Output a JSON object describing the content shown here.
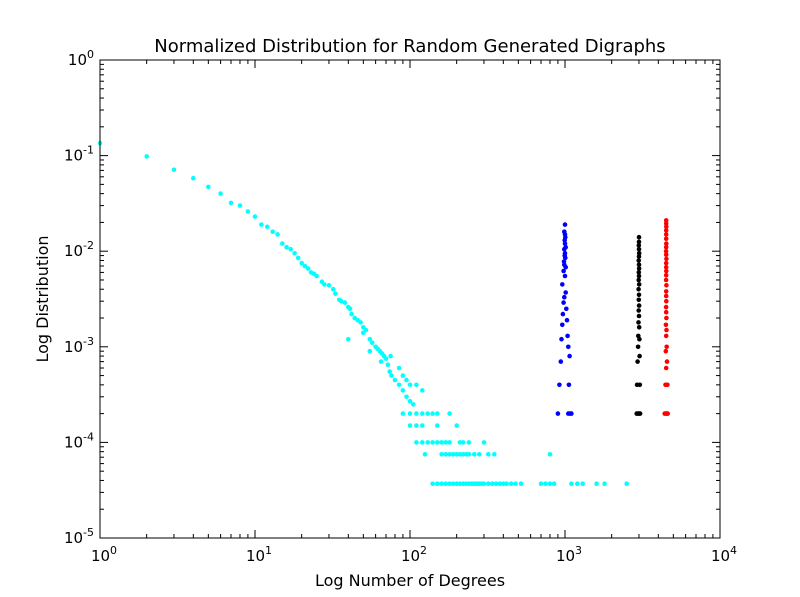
{
  "chart_data": {
    "type": "scatter",
    "title": "Normalized Distribution for Random Generated Digraphs",
    "xlabel": "Log Number of Degrees",
    "ylabel": "Log Distribution",
    "xscale": "log",
    "yscale": "log",
    "xlim": [
      1,
      10000
    ],
    "ylim": [
      1e-05,
      1
    ],
    "grid": false,
    "x_ticks": [
      {
        "base": "10",
        "exp": "0",
        "value": 1
      },
      {
        "base": "10",
        "exp": "1",
        "value": 10
      },
      {
        "base": "10",
        "exp": "2",
        "value": 100
      },
      {
        "base": "10",
        "exp": "3",
        "value": 1000
      },
      {
        "base": "10",
        "exp": "4",
        "value": 10000
      }
    ],
    "y_ticks": [
      {
        "base": "10",
        "exp": "0",
        "value": 1
      },
      {
        "base": "10",
        "exp": "-1",
        "value": 0.1
      },
      {
        "base": "10",
        "exp": "-2",
        "value": 0.01
      },
      {
        "base": "10",
        "exp": "-3",
        "value": 0.001
      },
      {
        "base": "10",
        "exp": "-4",
        "value": 0.0001
      },
      {
        "base": "10",
        "exp": "-5",
        "value": 1e-05
      }
    ],
    "series": [
      {
        "color": "#00ffff",
        "points": [
          [
            1,
            0.135
          ],
          [
            2,
            0.098
          ],
          [
            3,
            0.071
          ],
          [
            4,
            0.058
          ],
          [
            5,
            0.047
          ],
          [
            6,
            0.04
          ],
          [
            7,
            0.032
          ],
          [
            8,
            0.03
          ],
          [
            9,
            0.026
          ],
          [
            10,
            0.023
          ],
          [
            11,
            0.019
          ],
          [
            12,
            0.018
          ],
          [
            13,
            0.016
          ],
          [
            14,
            0.015
          ],
          [
            15,
            0.012
          ],
          [
            16,
            0.011
          ],
          [
            17,
            0.0105
          ],
          [
            18,
            0.0095
          ],
          [
            19,
            0.0085
          ],
          [
            20,
            0.0075
          ],
          [
            21,
            0.007
          ],
          [
            22,
            0.0066
          ],
          [
            23,
            0.006
          ],
          [
            24,
            0.0058
          ],
          [
            25,
            0.0055
          ],
          [
            27,
            0.0048
          ],
          [
            28,
            0.0045
          ],
          [
            30,
            0.0044
          ],
          [
            32,
            0.004
          ],
          [
            33,
            0.0036
          ],
          [
            35,
            0.0031
          ],
          [
            36,
            0.003
          ],
          [
            38,
            0.0029
          ],
          [
            40,
            0.0026
          ],
          [
            41,
            0.0025
          ],
          [
            42,
            0.0022
          ],
          [
            44,
            0.002
          ],
          [
            46,
            0.0019
          ],
          [
            48,
            0.0018
          ],
          [
            50,
            0.0016
          ],
          [
            52,
            0.0015
          ],
          [
            55,
            0.0012
          ],
          [
            57,
            0.0011
          ],
          [
            60,
            0.001
          ],
          [
            62,
            0.00095
          ],
          [
            64,
            0.0009
          ],
          [
            66,
            0.00085
          ],
          [
            68,
            0.0008
          ],
          [
            70,
            0.00075
          ],
          [
            72,
            0.00065
          ],
          [
            74,
            0.00055
          ],
          [
            76,
            0.0005
          ],
          [
            80,
            0.00045
          ],
          [
            85,
            0.0004
          ],
          [
            90,
            0.00035
          ],
          [
            95,
            0.0003
          ],
          [
            100,
            0.00027
          ],
          [
            105,
            0.00025
          ],
          [
            40,
            0.0012
          ],
          [
            50,
            0.0014
          ],
          [
            55,
            0.0009
          ],
          [
            65,
            0.0007
          ],
          [
            75,
            0.0008
          ],
          [
            85,
            0.0006
          ],
          [
            90,
            0.0005
          ],
          [
            95,
            0.00045
          ],
          [
            100,
            0.0004
          ],
          [
            110,
            0.0004
          ],
          [
            120,
            0.00035
          ],
          [
            100,
            0.0002
          ],
          [
            110,
            0.0002
          ],
          [
            120,
            0.0002
          ],
          [
            130,
            0.0002
          ],
          [
            140,
            0.0002
          ],
          [
            150,
            0.0002
          ],
          [
            180,
            0.0002
          ],
          [
            90,
            0.0002
          ],
          [
            100,
            0.00015
          ],
          [
            110,
            0.00015
          ],
          [
            120,
            0.00015
          ],
          [
            150,
            0.00015
          ],
          [
            200,
            0.00015
          ],
          [
            110,
            0.0001
          ],
          [
            120,
            0.0001
          ],
          [
            130,
            0.0001
          ],
          [
            140,
            0.0001
          ],
          [
            150,
            0.0001
          ],
          [
            160,
            0.0001
          ],
          [
            170,
            0.0001
          ],
          [
            180,
            0.0001
          ],
          [
            210,
            0.0001
          ],
          [
            220,
            0.0001
          ],
          [
            240,
            0.0001
          ],
          [
            300,
            0.0001
          ],
          [
            125,
            7.5e-05
          ],
          [
            160,
            7.5e-05
          ],
          [
            170,
            7.5e-05
          ],
          [
            180,
            7.5e-05
          ],
          [
            190,
            7.5e-05
          ],
          [
            200,
            7.5e-05
          ],
          [
            210,
            7.5e-05
          ],
          [
            220,
            7.5e-05
          ],
          [
            230,
            7.5e-05
          ],
          [
            240,
            7.5e-05
          ],
          [
            260,
            7.5e-05
          ],
          [
            280,
            7.5e-05
          ],
          [
            320,
            7.5e-05
          ],
          [
            350,
            7.5e-05
          ],
          [
            800,
            7.5e-05
          ],
          [
            140,
            3.7e-05
          ],
          [
            150,
            3.7e-05
          ],
          [
            160,
            3.7e-05
          ],
          [
            170,
            3.7e-05
          ],
          [
            180,
            3.7e-05
          ],
          [
            190,
            3.7e-05
          ],
          [
            200,
            3.7e-05
          ],
          [
            210,
            3.7e-05
          ],
          [
            220,
            3.7e-05
          ],
          [
            230,
            3.7e-05
          ],
          [
            240,
            3.7e-05
          ],
          [
            250,
            3.7e-05
          ],
          [
            260,
            3.7e-05
          ],
          [
            270,
            3.7e-05
          ],
          [
            280,
            3.7e-05
          ],
          [
            290,
            3.7e-05
          ],
          [
            300,
            3.7e-05
          ],
          [
            320,
            3.7e-05
          ],
          [
            340,
            3.7e-05
          ],
          [
            360,
            3.7e-05
          ],
          [
            380,
            3.7e-05
          ],
          [
            400,
            3.7e-05
          ],
          [
            420,
            3.7e-05
          ],
          [
            450,
            3.7e-05
          ],
          [
            480,
            3.7e-05
          ],
          [
            520,
            3.7e-05
          ],
          [
            700,
            3.7e-05
          ],
          [
            750,
            3.7e-05
          ],
          [
            800,
            3.7e-05
          ],
          [
            850,
            3.7e-05
          ],
          [
            1100,
            3.7e-05
          ],
          [
            1200,
            3.7e-05
          ],
          [
            1300,
            3.7e-05
          ],
          [
            1600,
            3.7e-05
          ],
          [
            1800,
            3.7e-05
          ],
          [
            2500,
            3.7e-05
          ]
        ]
      },
      {
        "color": "#0000ff",
        "points": [
          [
            900,
            0.0002
          ],
          [
            1080,
            0.0002
          ],
          [
            1100,
            0.0002
          ],
          [
            1050,
            0.0002
          ],
          [
            920,
            0.0004
          ],
          [
            1060,
            0.0004
          ],
          [
            940,
            0.0007
          ],
          [
            1070,
            0.0008
          ],
          [
            1050,
            0.001
          ],
          [
            950,
            0.0012
          ],
          [
            1040,
            0.0013
          ],
          [
            960,
            0.0017
          ],
          [
            1030,
            0.0019
          ],
          [
            970,
            0.0022
          ],
          [
            1020,
            0.0025
          ],
          [
            980,
            0.0029
          ],
          [
            990,
            0.0033
          ],
          [
            1010,
            0.0037
          ],
          [
            960,
            0.0045
          ],
          [
            1000,
            0.0055
          ],
          [
            980,
            0.0062
          ],
          [
            1010,
            0.0068
          ],
          [
            990,
            0.0072
          ],
          [
            985,
            0.0078
          ],
          [
            1005,
            0.0085
          ],
          [
            995,
            0.009
          ],
          [
            1000,
            0.0095
          ],
          [
            990,
            0.0105
          ],
          [
            1010,
            0.011
          ],
          [
            1000,
            0.012
          ],
          [
            995,
            0.013
          ],
          [
            1005,
            0.014
          ],
          [
            1000,
            0.015
          ],
          [
            990,
            0.016
          ],
          [
            1000,
            0.019
          ]
        ]
      },
      {
        "color": "#000000",
        "points": [
          [
            2900,
            0.0002
          ],
          [
            3000,
            0.0002
          ],
          [
            3050,
            0.0002
          ],
          [
            2950,
            0.0002
          ],
          [
            2920,
            0.0004
          ],
          [
            3040,
            0.0004
          ],
          [
            2940,
            0.0007
          ],
          [
            3030,
            0.0008
          ],
          [
            2960,
            0.001
          ],
          [
            3020,
            0.0012
          ],
          [
            2970,
            0.0013
          ],
          [
            3010,
            0.0016
          ],
          [
            2980,
            0.0018
          ],
          [
            3000,
            0.0021
          ],
          [
            2990,
            0.0024
          ],
          [
            3005,
            0.0027
          ],
          [
            2995,
            0.0031
          ],
          [
            3000,
            0.0035
          ],
          [
            2985,
            0.004
          ],
          [
            3010,
            0.0045
          ],
          [
            2990,
            0.005
          ],
          [
            3000,
            0.0055
          ],
          [
            2995,
            0.006
          ],
          [
            3005,
            0.0066
          ],
          [
            3000,
            0.0072
          ],
          [
            2990,
            0.008
          ],
          [
            3000,
            0.0088
          ],
          [
            3010,
            0.0095
          ],
          [
            3000,
            0.0105
          ],
          [
            2995,
            0.0115
          ],
          [
            3000,
            0.0125
          ],
          [
            3000,
            0.014
          ]
        ]
      },
      {
        "color": "#ff0000",
        "points": [
          [
            4400,
            0.0002
          ],
          [
            4600,
            0.0002
          ],
          [
            4500,
            0.0002
          ],
          [
            4550,
            0.0002
          ],
          [
            4450,
            0.0004
          ],
          [
            4580,
            0.0004
          ],
          [
            4500,
            0.0006
          ],
          [
            4550,
            0.0007
          ],
          [
            4470,
            0.0009
          ],
          [
            4530,
            0.001
          ],
          [
            4500,
            0.0013
          ],
          [
            4520,
            0.0015
          ],
          [
            4480,
            0.0017
          ],
          [
            4510,
            0.002
          ],
          [
            4500,
            0.0023
          ],
          [
            4490,
            0.0026
          ],
          [
            4505,
            0.003
          ],
          [
            4495,
            0.0034
          ],
          [
            4500,
            0.0038
          ],
          [
            4510,
            0.0044
          ],
          [
            4490,
            0.005
          ],
          [
            4500,
            0.0056
          ],
          [
            4505,
            0.0062
          ],
          [
            4495,
            0.0068
          ],
          [
            4500,
            0.0075
          ],
          [
            4510,
            0.0083
          ],
          [
            4500,
            0.0092
          ],
          [
            4490,
            0.01
          ],
          [
            4500,
            0.011
          ],
          [
            4505,
            0.012
          ],
          [
            4500,
            0.0135
          ],
          [
            4495,
            0.015
          ],
          [
            4500,
            0.0165
          ],
          [
            4505,
            0.018
          ],
          [
            4500,
            0.0195
          ],
          [
            4500,
            0.021
          ]
        ]
      }
    ]
  }
}
